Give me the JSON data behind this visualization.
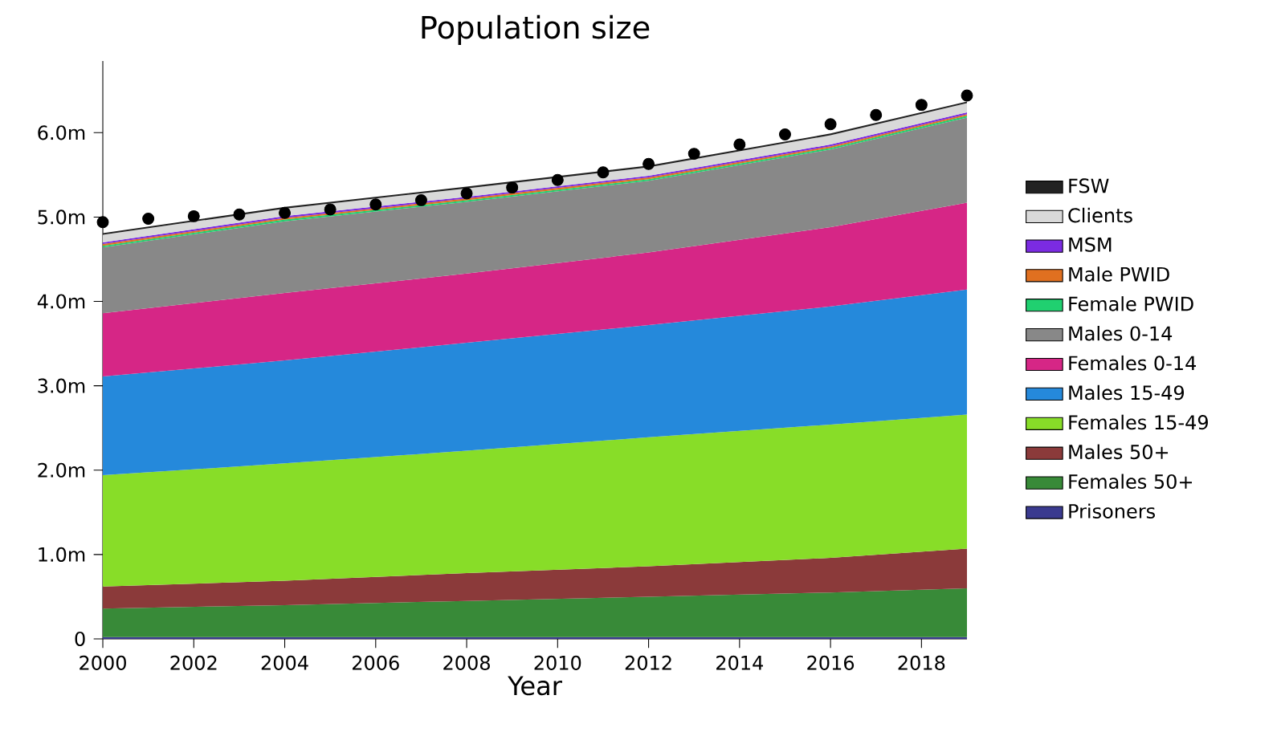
{
  "chart_data": {
    "type": "area",
    "title": "Population size",
    "xlabel": "Year",
    "stacked": true,
    "legend": "right",
    "grid": false,
    "x": [
      2000,
      2004,
      2008,
      2012,
      2016,
      2019
    ],
    "xlim": [
      2000,
      2019
    ],
    "xticks": [
      2000,
      2002,
      2004,
      2006,
      2008,
      2010,
      2012,
      2014,
      2016,
      2018
    ],
    "ylim": [
      0,
      6.85
    ],
    "yticks": [
      {
        "value": 0,
        "label": "0"
      },
      {
        "value": 1,
        "label": "1.0m"
      },
      {
        "value": 2,
        "label": "2.0m"
      },
      {
        "value": 3,
        "label": "3.0m"
      },
      {
        "value": 4,
        "label": "4.0m"
      },
      {
        "value": 5,
        "label": "5.0m"
      },
      {
        "value": 6,
        "label": "6.0m"
      }
    ],
    "series": [
      {
        "name": "Prisoners",
        "color": "#3a3a8f",
        "values": [
          0.02,
          0.02,
          0.02,
          0.02,
          0.02,
          0.02
        ]
      },
      {
        "name": "Females 50+",
        "color": "#388a38",
        "values": [
          0.34,
          0.38,
          0.43,
          0.48,
          0.53,
          0.58
        ]
      },
      {
        "name": "Males 50+",
        "color": "#8b3a3a",
        "values": [
          0.26,
          0.29,
          0.33,
          0.36,
          0.41,
          0.47
        ]
      },
      {
        "name": "Females 15-49",
        "color": "#88dd28",
        "values": [
          1.32,
          1.39,
          1.45,
          1.53,
          1.58,
          1.59
        ]
      },
      {
        "name": "Males 15-49",
        "color": "#2589db",
        "values": [
          1.17,
          1.22,
          1.28,
          1.33,
          1.4,
          1.48
        ]
      },
      {
        "name": "Females 0-14",
        "color": "#d62686",
        "values": [
          0.75,
          0.8,
          0.82,
          0.86,
          0.94,
          1.03
        ]
      },
      {
        "name": "Males 0-14",
        "color": "#888888",
        "values": [
          0.78,
          0.85,
          0.85,
          0.85,
          0.92,
          1.01
        ]
      },
      {
        "name": "Female PWID",
        "color": "#20d070",
        "values": [
          0.02,
          0.02,
          0.02,
          0.02,
          0.02,
          0.02
        ]
      },
      {
        "name": "Male PWID",
        "color": "#e07020",
        "values": [
          0.02,
          0.02,
          0.02,
          0.02,
          0.02,
          0.02
        ]
      },
      {
        "name": "MSM",
        "color": "#7b2be2",
        "values": [
          0.02,
          0.02,
          0.02,
          0.02,
          0.02,
          0.02
        ]
      },
      {
        "name": "Clients",
        "color": "#d9d9d9",
        "values": [
          0.09,
          0.09,
          0.1,
          0.1,
          0.11,
          0.11
        ]
      },
      {
        "name": "FSW",
        "color": "#222222",
        "values": [
          0.02,
          0.02,
          0.02,
          0.02,
          0.02,
          0.02
        ]
      },
      {
        "type": "scatter",
        "color": "#000000",
        "x": [
          2000,
          2001,
          2002,
          2003,
          2004,
          2005,
          2006,
          2007,
          2008,
          2009,
          2010,
          2011,
          2012,
          2013,
          2014,
          2015,
          2016,
          2017,
          2018,
          2019
        ],
        "values": [
          4.94,
          4.98,
          5.01,
          5.03,
          5.05,
          5.09,
          5.15,
          5.2,
          5.28,
          5.35,
          5.44,
          5.53,
          5.63,
          5.75,
          5.86,
          5.98,
          6.1,
          6.21,
          6.33,
          6.44
        ]
      }
    ]
  }
}
